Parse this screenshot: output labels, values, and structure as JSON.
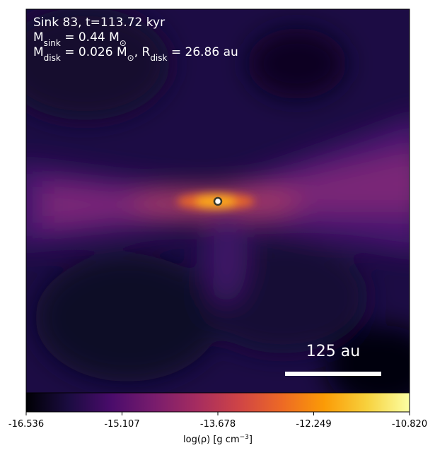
{
  "chart_data": {
    "type": "image",
    "annotations": [
      [
        "Sink 83, t=113.72 kyr"
      ],
      [
        "M",
        "sink",
        " = 0.44 M",
        "⊙"
      ],
      [
        "M",
        "disk",
        " = 0.026 M",
        "⊙",
        ", R",
        "disk",
        " = 26.86 au"
      ]
    ],
    "scale_bar_label": "125 au",
    "colorbar": {
      "colormap": "inferno",
      "clim": [
        -16.536,
        -10.82
      ],
      "ticks": [
        -16.536,
        -15.107,
        -13.678,
        -12.249,
        {
          "value": -10.82,
          "label": "-10.820"
        }
      ],
      "label": [
        "log(ρ) [g cm",
        "−3",
        "]"
      ]
    }
  }
}
